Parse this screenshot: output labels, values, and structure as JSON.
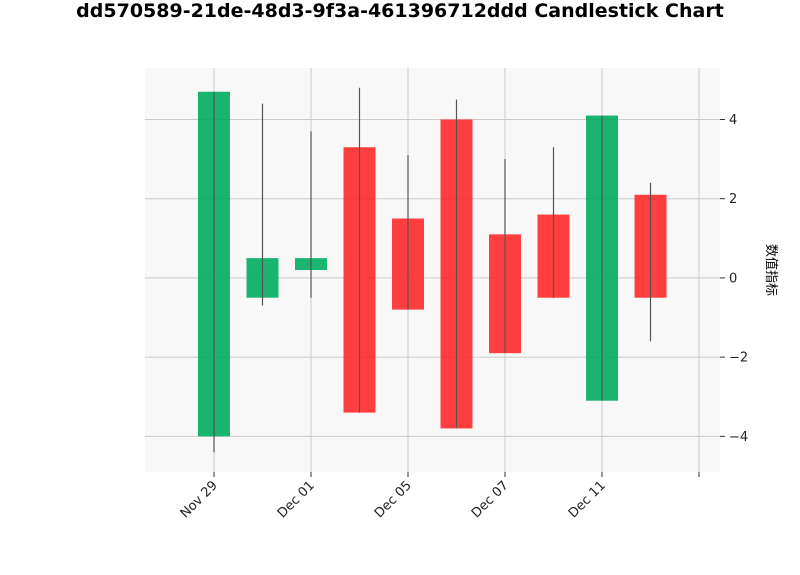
{
  "chart_data": {
    "type": "candlestick",
    "title": "dd570589-21de-48d3-9f3a-461396712ddd Candlestick Chart",
    "ylabel": "数值指标",
    "xlabel": "",
    "ylim": [
      -4.9,
      5.3
    ],
    "yticks": [
      -4,
      -2,
      0,
      2,
      4
    ],
    "x_tick_labels": [
      "Nov 29",
      "Dec 01",
      "Dec 05",
      "Dec 07",
      "Dec 11",
      ""
    ],
    "grid": true,
    "colors": {
      "up": "#00ac5f",
      "down": "#ff2a2a",
      "wick": "#555555",
      "plot_bg": "#f8f8f8",
      "grid": "#cccccc"
    },
    "candles": [
      {
        "open": -4.0,
        "high": 4.7,
        "low": -4.4,
        "close": 4.7
      },
      {
        "open": -0.5,
        "high": 4.4,
        "low": -0.7,
        "close": 0.5
      },
      {
        "open": 0.2,
        "high": 3.7,
        "low": -0.5,
        "close": 0.5
      },
      {
        "open": 3.3,
        "high": 4.8,
        "low": -3.4,
        "close": -3.4
      },
      {
        "open": 1.5,
        "high": 3.1,
        "low": -0.8,
        "close": -0.8
      },
      {
        "open": 4.0,
        "high": 4.5,
        "low": -3.8,
        "close": -3.8
      },
      {
        "open": 1.1,
        "high": 3.0,
        "low": -1.9,
        "close": -1.9
      },
      {
        "open": 1.6,
        "high": 3.3,
        "low": -0.5,
        "close": -0.5
      },
      {
        "open": -3.1,
        "high": 4.1,
        "low": -3.1,
        "close": 4.1
      },
      {
        "open": 2.1,
        "high": 2.4,
        "low": -1.6,
        "close": -0.5
      }
    ]
  }
}
